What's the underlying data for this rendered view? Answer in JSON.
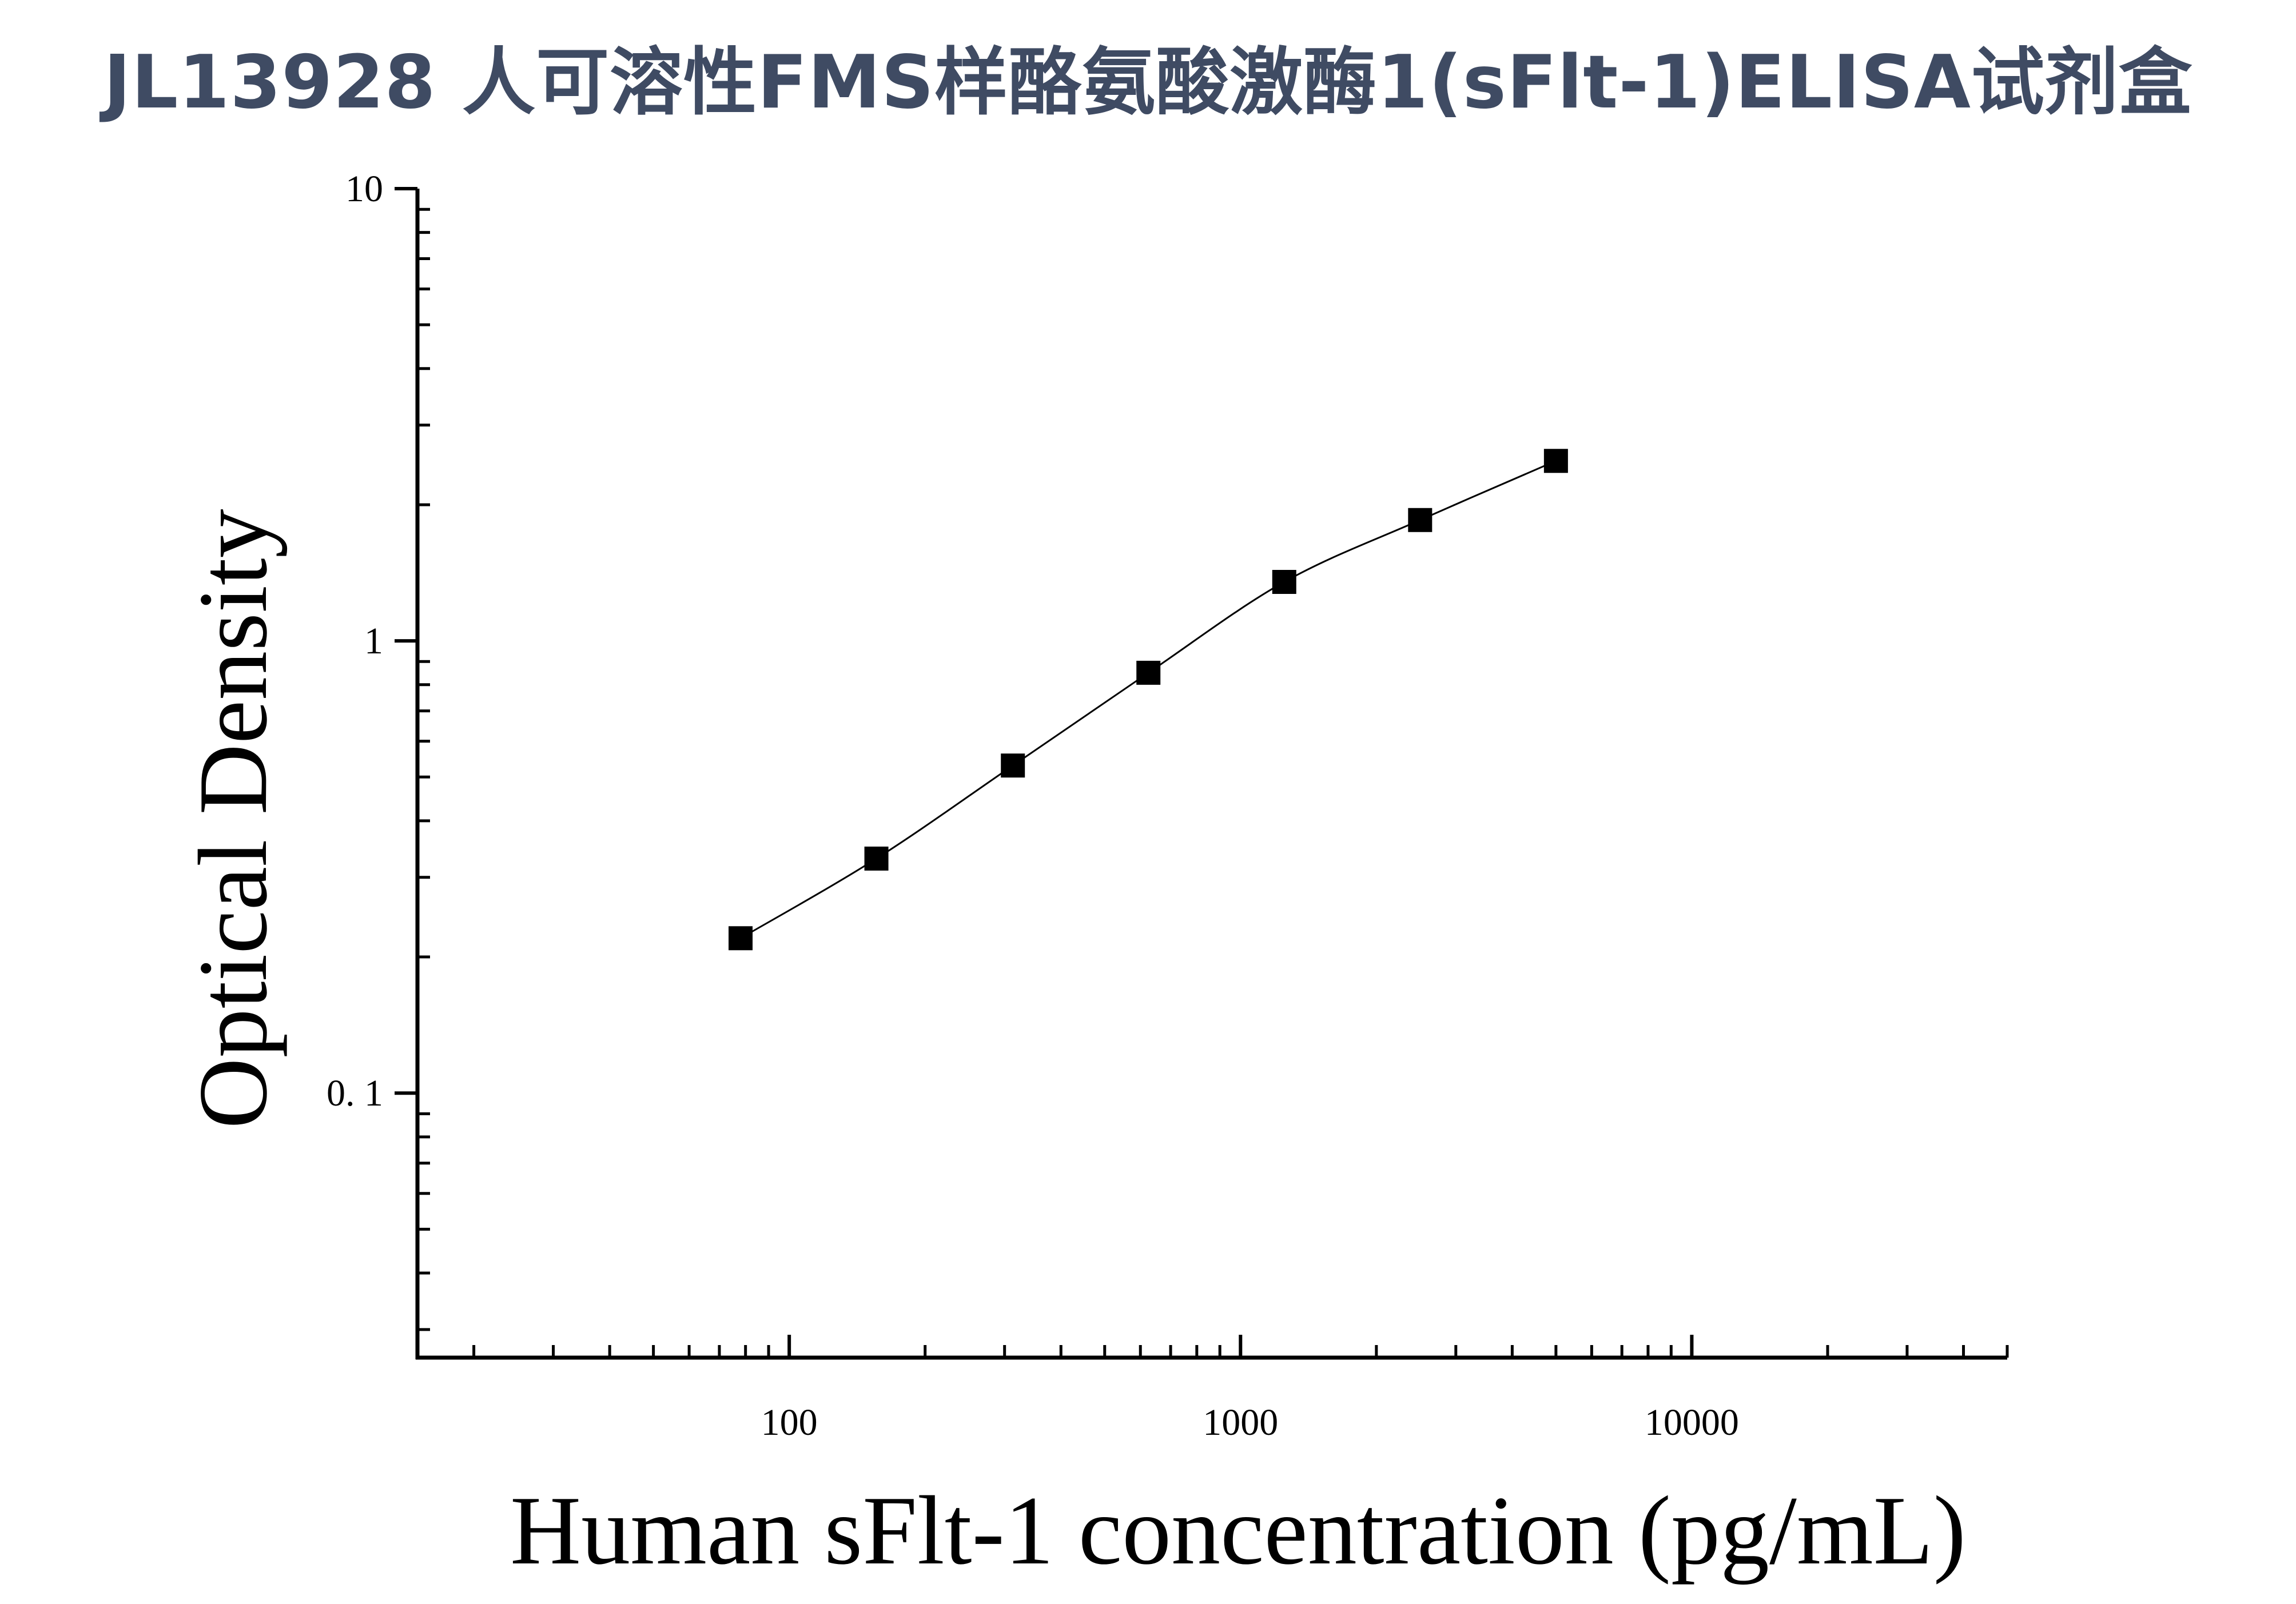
{
  "title": "JL13928 人可溶性FMS样酪氨酸激酶1(sFlt-1)ELISA试剂盒",
  "colors": {
    "title": "#3f4b63",
    "axis": "#000000",
    "marker": "#000000",
    "curve": "#000000"
  },
  "chart_data": {
    "type": "scatter",
    "title": "JL13928 人可溶性FMS样酪氨酸激酶1(sFlt-1)ELISA试剂盒",
    "xlabel": "Human sFlt-1 concentration (pg/mL)",
    "ylabel": "Optical Density",
    "xscale": "log",
    "yscale": "log",
    "xlim": [
      15,
      50000
    ],
    "ylim": [
      0.026,
      10
    ],
    "xticks": [
      100,
      1000,
      10000
    ],
    "xtick_labels": [
      "100",
      "1000",
      "10000"
    ],
    "yticks": [
      0.1,
      1,
      10
    ],
    "ytick_labels": [
      "0. 1",
      "1",
      "10"
    ],
    "grid": false,
    "legend": "none",
    "marker": "square",
    "fit_curve": true,
    "series": [
      {
        "x": [
          78,
          156,
          313,
          625,
          1250,
          2500,
          5000
        ],
        "y": [
          0.22,
          0.33,
          0.53,
          0.85,
          1.35,
          1.85,
          2.5
        ]
      }
    ]
  }
}
